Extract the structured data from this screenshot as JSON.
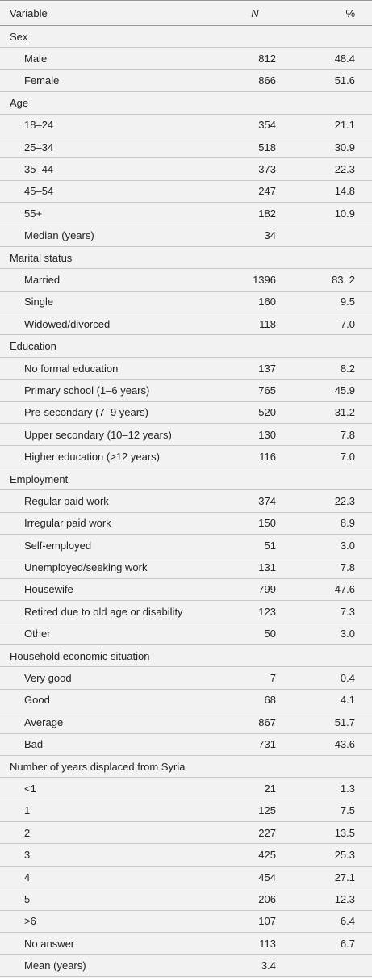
{
  "table": {
    "header": [
      "Variable",
      "N",
      "%"
    ],
    "sections": [
      {
        "label": "Sex",
        "rows": [
          [
            "Male",
            812,
            48.4
          ],
          [
            "Female",
            866,
            51.6
          ]
        ]
      },
      {
        "label": "Age",
        "rows": [
          [
            "18–24",
            354,
            21.1
          ],
          [
            "25–34",
            518,
            30.9
          ],
          [
            "35–44",
            373,
            22.3
          ],
          [
            "45–54",
            247,
            14.8
          ],
          [
            "55+",
            182,
            10.9
          ],
          [
            "Median (years)",
            34
          ]
        ]
      },
      {
        "label": "Marital status",
        "rows": [
          [
            "Married",
            1396,
            "83. 2"
          ],
          [
            "Single",
            160,
            9.5
          ],
          [
            "Widowed/divorced",
            118,
            "7.0"
          ]
        ]
      },
      {
        "label": "Education",
        "rows": [
          [
            "No formal education",
            137,
            8.2
          ],
          [
            "Primary school (1–6 years)",
            765,
            45.9
          ],
          [
            "Pre-secondary (7–9 years)",
            520,
            31.2
          ],
          [
            "Upper secondary (10–12 years)",
            130,
            7.8
          ],
          [
            "Higher education (>12 years)",
            116,
            "7.0"
          ]
        ]
      },
      {
        "label": "Employment",
        "rows": [
          [
            "Regular paid work",
            374,
            22.3
          ],
          [
            "Irregular paid work",
            150,
            8.9
          ],
          [
            "Self-employed",
            51,
            "3.0"
          ],
          [
            "Unemployed/seeking work",
            131,
            7.8
          ],
          [
            "Housewife",
            799,
            47.6
          ],
          [
            "Retired due to old age or disability",
            123,
            7.3
          ],
          [
            "Other",
            50,
            "3.0"
          ]
        ]
      },
      {
        "label": "Household economic situation",
        "rows": [
          [
            "Very good",
            7,
            0.4
          ],
          [
            "Good",
            68,
            4.1
          ],
          [
            "Average",
            867,
            51.7
          ],
          [
            "Bad",
            731,
            43.6
          ]
        ]
      },
      {
        "label": "Number of years displaced from Syria",
        "rows": [
          [
            "<1",
            21,
            1.3
          ],
          [
            "1",
            125,
            7.5
          ],
          [
            "2",
            227,
            13.5
          ],
          [
            "3",
            425,
            25.3
          ],
          [
            "4",
            454,
            27.1
          ],
          [
            "5",
            206,
            12.3
          ],
          [
            ">6",
            107,
            6.4
          ],
          [
            "No answer",
            113,
            6.7
          ],
          [
            "Mean (years)",
            3.4
          ]
        ]
      }
    ]
  }
}
